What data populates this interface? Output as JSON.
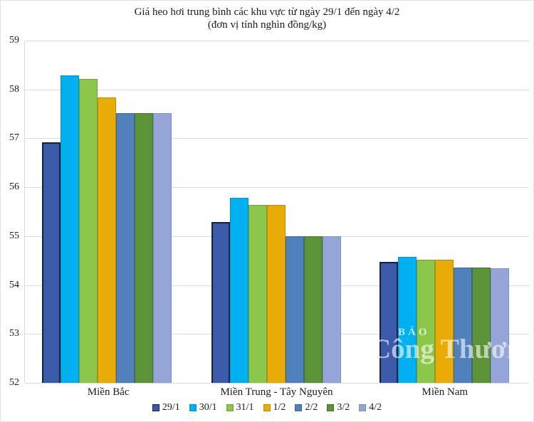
{
  "chart_data": {
    "type": "bar",
    "title": "Giá heo hơi trung bình các khu vực từ ngày 29/1 đến ngày 4/2",
    "subtitle": "(đơn vị tính nghìn đồng/kg)",
    "categories": [
      "Miền Bắc",
      "Miền Trung - Tây Nguyên",
      "Miền Nam"
    ],
    "series": [
      {
        "name": "29/1",
        "color": "#3a5ba9",
        "border": "#16223f",
        "values": [
          56.92,
          55.29,
          54.47
        ]
      },
      {
        "name": "30/1",
        "color": "#00b0f0",
        "border": "#0092c9",
        "values": [
          58.29,
          55.78,
          54.57
        ]
      },
      {
        "name": "31/1",
        "color": "#8cc74b",
        "border": "#6fa335",
        "values": [
          58.21,
          55.64,
          54.52
        ]
      },
      {
        "name": "1/2",
        "color": "#e9ac07",
        "border": "#bf8b00",
        "values": [
          57.84,
          55.64,
          54.52
        ]
      },
      {
        "name": "2/2",
        "color": "#5081bc",
        "border": "#3a659b",
        "values": [
          57.52,
          55.0,
          54.36
        ]
      },
      {
        "name": "3/2",
        "color": "#5c9338",
        "border": "#44722a",
        "values": [
          57.52,
          55.0,
          54.36
        ]
      },
      {
        "name": "4/2",
        "color": "#95a5d8",
        "border": "#7c8ec6",
        "values": [
          57.52,
          55.0,
          54.35
        ]
      }
    ],
    "ylim": [
      52,
      59
    ],
    "yticks": [
      59,
      58,
      57,
      56,
      55,
      54,
      53,
      52
    ],
    "grid": true,
    "legend_position": "bottom",
    "gridline_color": "#dcdcdc",
    "watermark": {
      "line1": "BÁO",
      "line2": "Công Thương"
    }
  }
}
